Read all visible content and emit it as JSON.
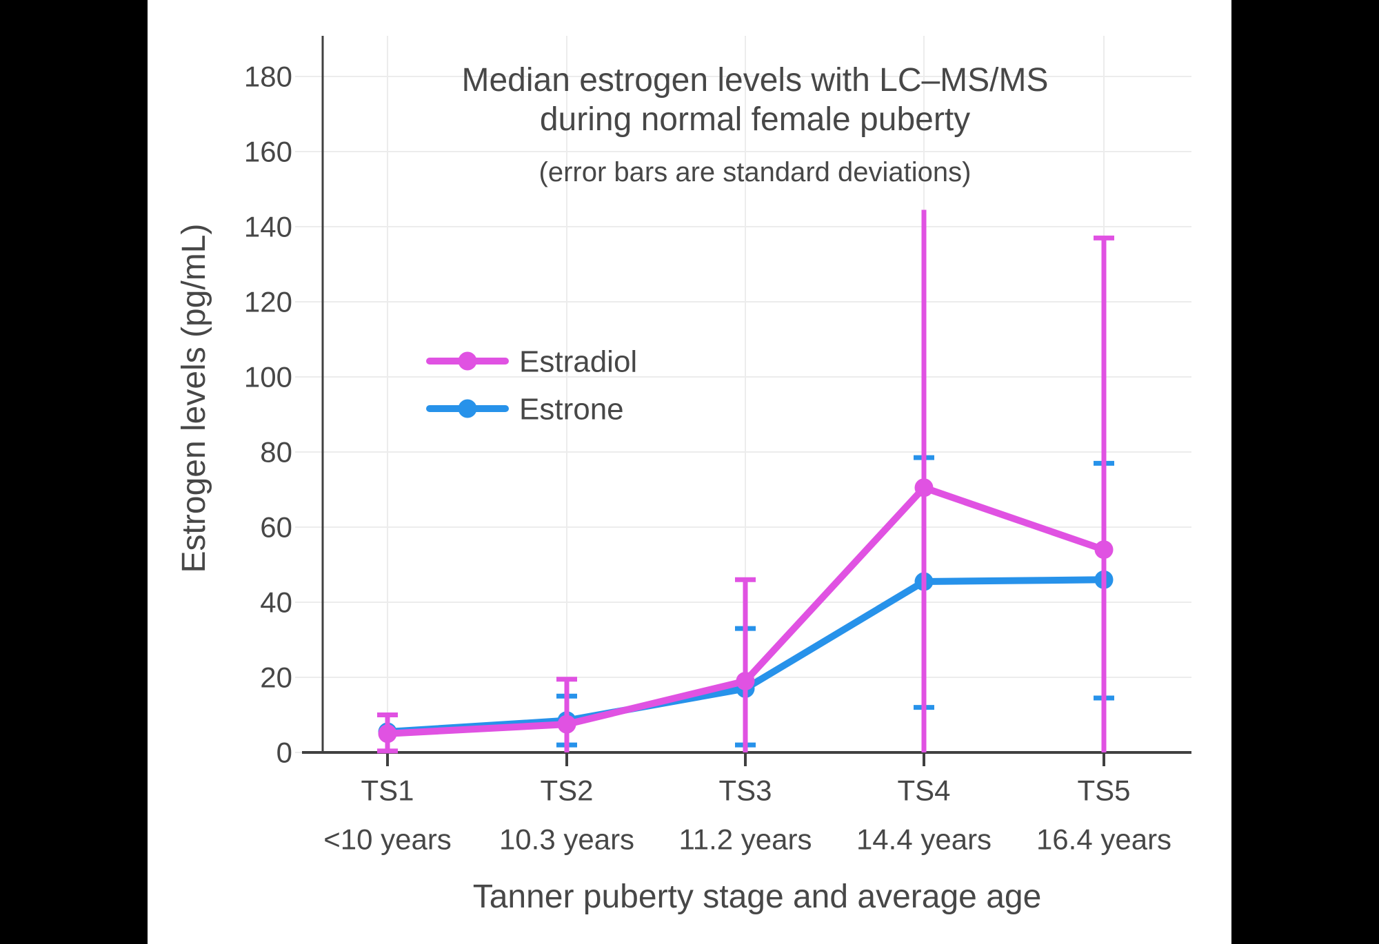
{
  "colors": {
    "background": "#000000",
    "panel": "#ffffff",
    "grid": "#ececec",
    "axis_line": "#404040",
    "text": "#474747",
    "estradiol": "#e052e2",
    "estrone": "#2792ea"
  },
  "chart_data": {
    "type": "line",
    "title_lines": [
      "Median estrogen levels with LC–MS/MS",
      "during normal female puberty"
    ],
    "subtitle": "(error bars are standard deviations)",
    "xlabel": "Tanner puberty stage and average age",
    "ylabel": "Estrogen levels (pg/mL)",
    "ylim": [
      0,
      190
    ],
    "yticks": [
      0,
      20,
      40,
      60,
      80,
      100,
      120,
      140,
      160,
      180
    ],
    "grid": true,
    "legend_position": "inside-left-middle",
    "categories": [
      "TS1",
      "TS2",
      "TS3",
      "TS4",
      "TS5"
    ],
    "category_sublabels": [
      "<10 years",
      "10.3 years",
      "11.2 years",
      "14.4 years",
      "16.4 years"
    ],
    "series": [
      {
        "name": "Estradiol",
        "color": "#e052e2",
        "values": [
          5,
          7.5,
          19,
          70.5,
          54
        ],
        "error_hi": [
          10,
          19.5,
          46,
          144.5,
          137
        ],
        "error_lo": [
          0.4,
          0,
          0,
          0,
          0
        ],
        "cap_hi": [
          true,
          true,
          true,
          false,
          true
        ],
        "cap_lo": [
          true,
          false,
          false,
          false,
          false
        ]
      },
      {
        "name": "Estrone",
        "color": "#2792ea",
        "values": [
          5.5,
          8.5,
          17,
          45.5,
          46
        ],
        "error_hi": [
          null,
          15,
          33,
          78.5,
          77
        ],
        "error_lo": [
          null,
          2,
          2,
          12,
          14.5
        ],
        "cap_hi": [
          false,
          true,
          true,
          true,
          true
        ],
        "cap_lo": [
          false,
          true,
          true,
          true,
          true
        ]
      }
    ]
  }
}
